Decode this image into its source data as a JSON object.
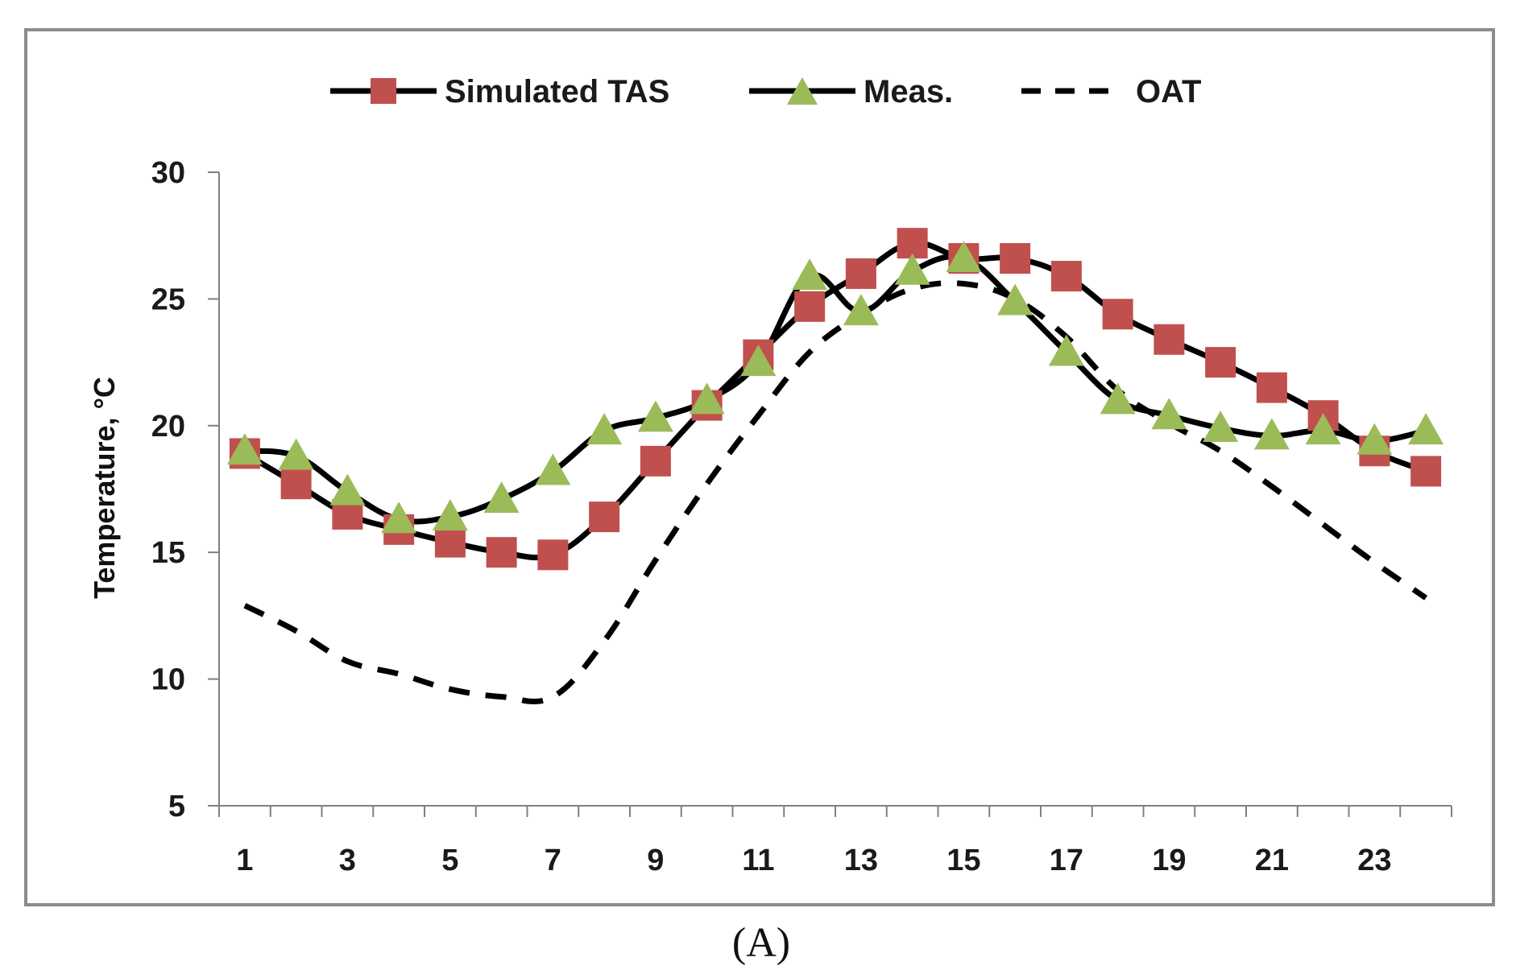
{
  "chart_data": {
    "type": "line",
    "title": "",
    "xlabel": "",
    "ylabel": "Temperature, °C",
    "x": [
      1,
      2,
      3,
      4,
      5,
      6,
      7,
      8,
      9,
      10,
      11,
      12,
      13,
      14,
      15,
      16,
      17,
      18,
      19,
      20,
      21,
      22,
      23,
      24
    ],
    "x_tick_labels": [
      "1",
      "3",
      "5",
      "7",
      "9",
      "11",
      "13",
      "15",
      "17",
      "19",
      "21",
      "23"
    ],
    "y_tick_labels": [
      "5",
      "10",
      "15",
      "20",
      "25",
      "30"
    ],
    "ylim": [
      5,
      30
    ],
    "y_ticks": [
      5,
      10,
      15,
      20,
      25,
      30
    ],
    "grid": false,
    "legend_position": "top-center",
    "series": [
      {
        "name": "Simulated TAS",
        "marker": "square",
        "line": "solid",
        "color": "#c0504d",
        "values": [
          18.9,
          17.7,
          16.5,
          15.9,
          15.4,
          15.0,
          14.9,
          16.4,
          18.6,
          20.8,
          22.8,
          24.7,
          26.0,
          27.2,
          26.6,
          26.6,
          25.9,
          24.4,
          23.4,
          22.5,
          21.5,
          20.4,
          19.0,
          18.2
        ]
      },
      {
        "name": "Meas.",
        "marker": "triangle",
        "line": "solid",
        "color": "#9bbb59",
        "values": [
          19.0,
          18.8,
          17.4,
          16.3,
          16.4,
          17.1,
          18.2,
          19.8,
          20.3,
          21.0,
          22.5,
          25.9,
          24.5,
          26.1,
          26.6,
          24.9,
          22.9,
          21.0,
          20.4,
          19.9,
          19.6,
          19.8,
          19.4,
          19.8
        ]
      },
      {
        "name": "OAT",
        "marker": "none",
        "line": "dashed",
        "color": "#000000",
        "values": [
          12.9,
          11.9,
          10.7,
          10.2,
          9.6,
          9.3,
          9.3,
          11.5,
          14.7,
          17.7,
          20.4,
          22.9,
          24.4,
          25.4,
          25.6,
          25.0,
          23.5,
          21.4,
          20.1,
          19.0,
          17.6,
          16.1,
          14.6,
          13.2
        ]
      }
    ],
    "caption": "(A)"
  },
  "colors": {
    "frame": "#8c8c8c",
    "axis": "#808080",
    "line": "#000000",
    "square_marker": "#c0504d",
    "triangle_marker": "#9bbb59"
  }
}
